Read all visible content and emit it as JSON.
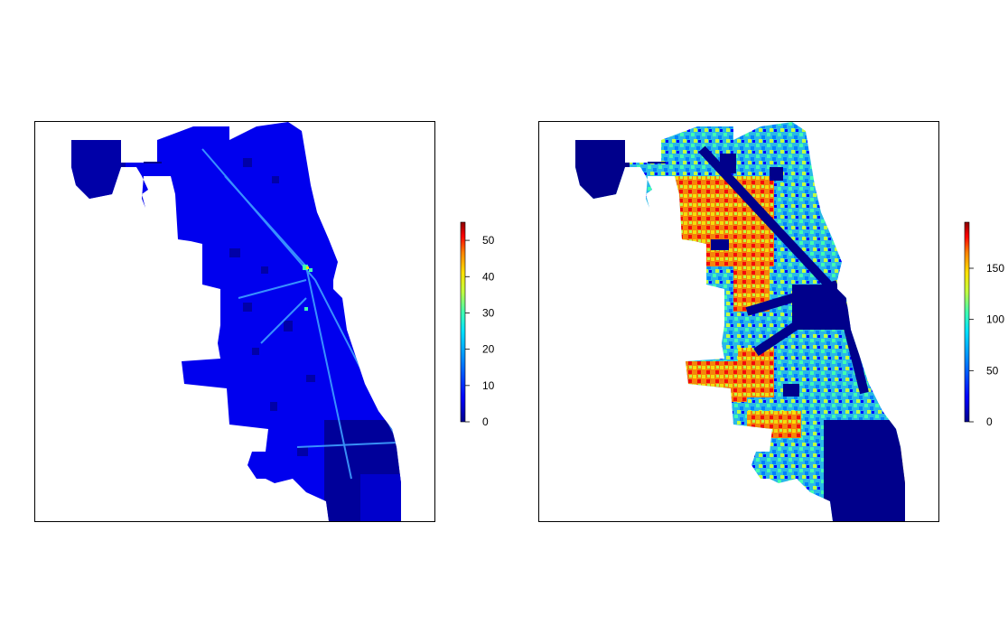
{
  "maps": [
    {
      "id": "left",
      "colorbar": {
        "max": 55,
        "tick_labels": [
          "0",
          "10",
          "20",
          "30",
          "40",
          "50"
        ],
        "tick_values": [
          0,
          10,
          20,
          30,
          40,
          50
        ]
      },
      "dominant_color": "#0000ee"
    },
    {
      "id": "right",
      "colorbar": {
        "max": 195,
        "tick_labels": [
          "0",
          "50",
          "100",
          "150"
        ],
        "tick_values": [
          0,
          50,
          100,
          150
        ]
      },
      "dominant_color": "#2ab8e8"
    }
  ],
  "palette": [
    "#00008b",
    "#0000ff",
    "#0080ff",
    "#00e0ff",
    "#40ffb0",
    "#c0ff40",
    "#ffe000",
    "#ff8000",
    "#ff0000",
    "#8b0000"
  ]
}
